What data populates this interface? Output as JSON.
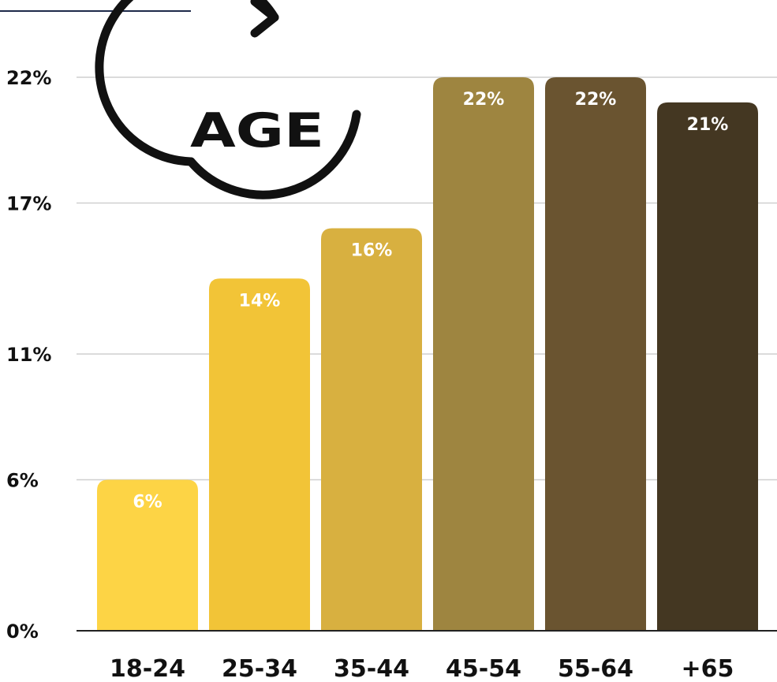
{
  "chart_data": {
    "type": "bar",
    "categories": [
      "18-24",
      "25-34",
      "35-44",
      "45-54",
      "55-64",
      "+65"
    ],
    "values": [
      6,
      14,
      16,
      22,
      22,
      21
    ],
    "data_labels": [
      "6%",
      "14%",
      "16%",
      "22%",
      "22%",
      "21%"
    ],
    "yticks": [
      {
        "value": 0,
        "label": "0%"
      },
      {
        "value": 6,
        "label": "6%"
      },
      {
        "value": 11,
        "label": "11%"
      },
      {
        "value": 17,
        "label": "17%"
      },
      {
        "value": 22,
        "label": "22%"
      }
    ],
    "ylim": [
      0,
      22
    ],
    "title": "",
    "xlabel": "",
    "ylabel": "",
    "grid": true,
    "colors": [
      "#FDD445",
      "#F2C437",
      "#D8B040",
      "#9E8540",
      "#6A5430",
      "#443722"
    ]
  },
  "logo": {
    "text": "AGE",
    "icon": "circular-arrow-icon"
  }
}
